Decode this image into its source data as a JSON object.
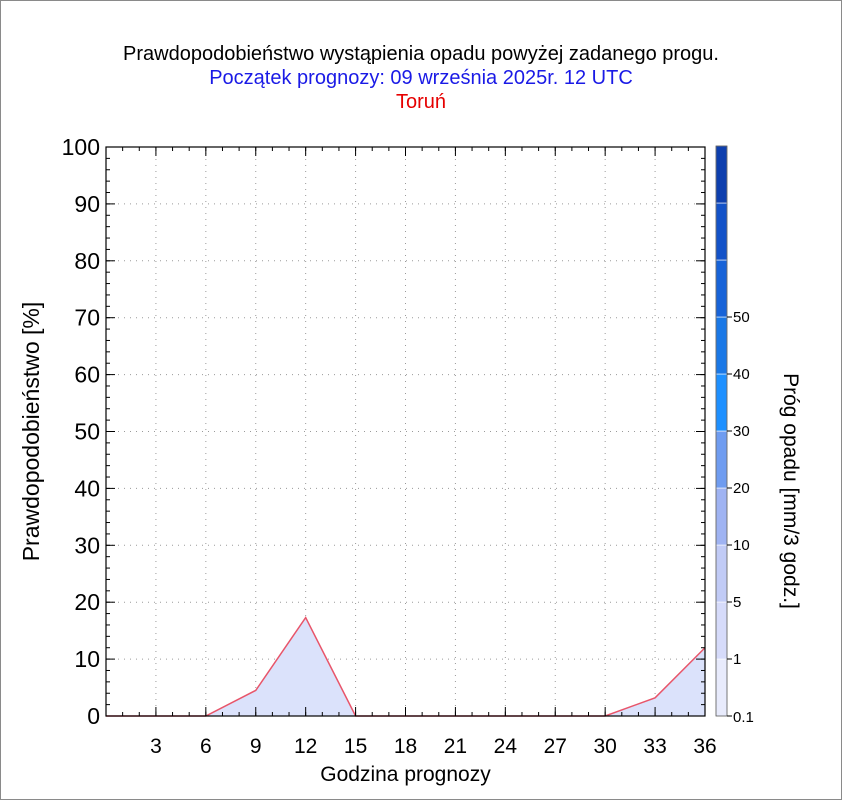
{
  "header": {
    "title": "Prawdopodobieństwo wystąpienia opadu powyżej zadanego progu.",
    "forecast_start": "Początek prognozy: 09 września 2025r. 12 UTC",
    "location": "Toruń"
  },
  "colors": {
    "title": "#000000",
    "forecast_start": "#1a1ae6",
    "location": "#e60000",
    "series_line": "#e8556a",
    "series_fill": "#dbe2fb"
  },
  "chart_data": {
    "type": "area",
    "title": "Prawdopodobieństwo wystąpienia opadu powyżej zadanego progu.",
    "xlabel": "Godzina prognozy",
    "ylabel": "Prawdopodobieństwo [%]",
    "xlim": [
      0,
      36
    ],
    "ylim": [
      0,
      100
    ],
    "x_ticks": [
      3,
      6,
      9,
      12,
      15,
      18,
      21,
      24,
      27,
      30,
      33,
      36
    ],
    "y_ticks": [
      0,
      10,
      20,
      30,
      40,
      50,
      60,
      70,
      80,
      90,
      100
    ],
    "grid": true,
    "series": [
      {
        "x": [
          0,
          3,
          6,
          9,
          12,
          15,
          18,
          21,
          24,
          27,
          30,
          33,
          36
        ],
        "values": [
          0,
          0,
          0,
          4.5,
          17.3,
          0,
          0,
          0,
          0,
          0,
          0,
          3.2,
          12
        ]
      }
    ],
    "colorbar": {
      "label": "Próg opadu [mm/3 godz.]",
      "tick_labels": [
        "0.1",
        "1",
        "5",
        "10",
        "20",
        "30",
        "40",
        "50"
      ],
      "bands": [
        "#e8ebfc",
        "#d6dbfa",
        "#c1cbf6",
        "#9fb3f2",
        "#6f9cf0",
        "#1e90ff",
        "#1a78e6",
        "#1763d8",
        "#1352c8",
        "#0e3fae"
      ]
    }
  }
}
